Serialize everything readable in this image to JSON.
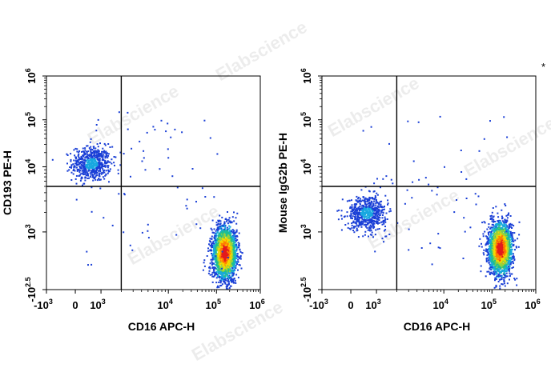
{
  "corner_mark": "*",
  "watermark": "Elabscience",
  "chart_data": [
    {
      "type": "scatter",
      "title": "",
      "xlabel": "CD16 APC-H",
      "ylabel": "CD193 PE-H",
      "x_scale": "biexponential",
      "y_scale": "biexponential",
      "x_ticks": [
        {
          "base": "-10",
          "exp": "3"
        },
        {
          "base": "0",
          "exp": ""
        },
        {
          "base": "10",
          "exp": "3"
        },
        {
          "base": "10",
          "exp": "4"
        },
        {
          "base": "10",
          "exp": "5"
        },
        {
          "base": "10",
          "exp": "6"
        }
      ],
      "y_ticks": [
        {
          "base": "-10",
          "exp": "2.5"
        },
        {
          "base": "10",
          "exp": "3"
        },
        {
          "base": "10",
          "exp": "4"
        },
        {
          "base": "10",
          "exp": "5"
        },
        {
          "base": "10",
          "exp": "6"
        }
      ],
      "gate": {
        "x": 2000,
        "y": 5000
      },
      "populations": [
        {
          "name": "",
          "x_center": 600,
          "y_center": 12000,
          "count": 600
        },
        {
          "name": "",
          "x_center": 150000,
          "y_center": 600,
          "count": 2200
        }
      ]
    },
    {
      "type": "scatter",
      "title": "",
      "xlabel": "CD16 APC-H",
      "ylabel": "Mouse IgG2b PE-H",
      "x_scale": "biexponential",
      "y_scale": "biexponential",
      "x_ticks": [
        {
          "base": "-10",
          "exp": "3"
        },
        {
          "base": "0",
          "exp": ""
        },
        {
          "base": "10",
          "exp": "3"
        },
        {
          "base": "10",
          "exp": "4"
        },
        {
          "base": "10",
          "exp": "5"
        },
        {
          "base": "10",
          "exp": "6"
        }
      ],
      "y_ticks": [
        {
          "base": "-10",
          "exp": "2.5"
        },
        {
          "base": "10",
          "exp": "3"
        },
        {
          "base": "10",
          "exp": "4"
        },
        {
          "base": "10",
          "exp": "5"
        },
        {
          "base": "10",
          "exp": "6"
        }
      ],
      "gate": {
        "x": 2000,
        "y": 5000
      },
      "populations": [
        {
          "name": "",
          "x_center": 600,
          "y_center": 2000,
          "count": 600
        },
        {
          "name": "",
          "x_center": 150000,
          "y_center": 700,
          "count": 2200
        }
      ]
    }
  ]
}
